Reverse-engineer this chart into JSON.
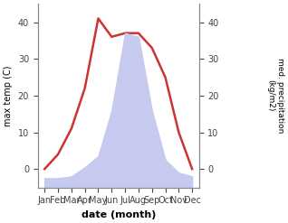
{
  "months": [
    "Jan",
    "Feb",
    "Mar",
    "Apr",
    "May",
    "Jun",
    "Jul",
    "Aug",
    "Sep",
    "Oct",
    "Nov",
    "Dec"
  ],
  "month_positions": [
    1,
    2,
    3,
    4,
    5,
    6,
    7,
    8,
    9,
    10,
    11,
    12
  ],
  "temperature": [
    0.0,
    4.0,
    11.0,
    22.0,
    41.0,
    36.0,
    37.0,
    37.0,
    33.0,
    25.0,
    10.0,
    0.0
  ],
  "precipitation": [
    -2.5,
    -2.5,
    -2.0,
    0.5,
    3.5,
    16.0,
    37.0,
    36.0,
    16.0,
    2.5,
    -1.0,
    -2.0
  ],
  "temp_color": "#cc3333",
  "precip_fill_color": "#c5caee",
  "ylabel_left": "max temp (C)",
  "ylabel_right": "med. precipitation\n(kg/m2)",
  "xlabel": "date (month)",
  "ylim": [
    -5,
    45
  ],
  "left_yticks": [
    0,
    10,
    20,
    30,
    40
  ],
  "right_yticks": [
    0,
    10,
    20,
    30,
    40
  ],
  "background_color": "#ffffff"
}
